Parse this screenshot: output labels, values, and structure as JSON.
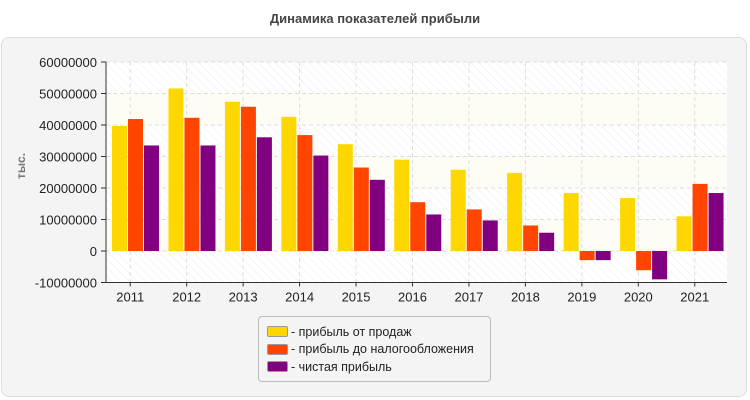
{
  "chart_data": {
    "type": "bar",
    "title": "Динамика показателей прибыли",
    "ylabel": "тыс.",
    "xlabel": "",
    "ylim": [
      -10000000,
      60000000
    ],
    "yticks": [
      "60000000",
      "50000000",
      "40000000",
      "30000000",
      "20000000",
      "10000000",
      "0",
      "-10000000"
    ],
    "grid": true,
    "legend_position": "bottom",
    "categories": [
      "2011",
      "2012",
      "2013",
      "2014",
      "2015",
      "2016",
      "2017",
      "2018",
      "2019",
      "2020",
      "2021"
    ],
    "series": [
      {
        "name": "- прибыль от продаж",
        "color": "#FFD700",
        "values": [
          39700000,
          51600000,
          47400000,
          42600000,
          33900000,
          29000000,
          25800000,
          24800000,
          18400000,
          16800000,
          11000000
        ]
      },
      {
        "name": "- прибыль до налогообложения",
        "color": "#FF4500",
        "values": [
          41900000,
          42300000,
          45800000,
          36800000,
          26500000,
          15500000,
          13200000,
          8100000,
          -2900000,
          -6100000,
          21300000
        ]
      },
      {
        "name": "- чистая прибыль",
        "color": "#800080",
        "values": [
          33500000,
          33500000,
          36100000,
          30300000,
          22600000,
          11600000,
          9700000,
          5800000,
          -2900000,
          -9000000,
          18400000
        ]
      }
    ]
  }
}
